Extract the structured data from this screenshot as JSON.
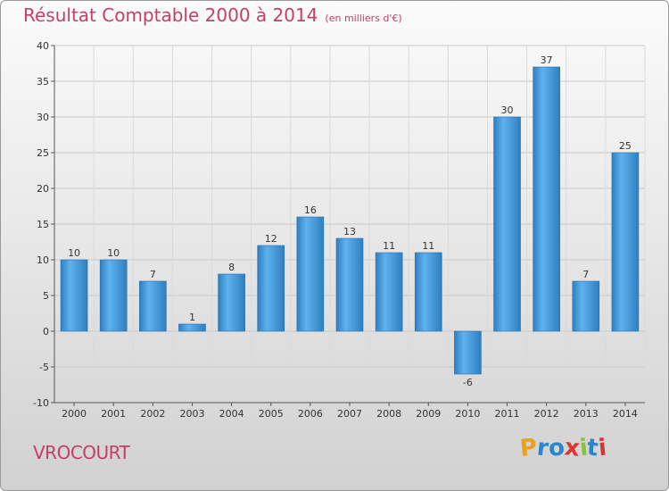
{
  "chart_data": {
    "type": "bar",
    "title": "Résultat Comptable 2000 à 2014",
    "subtitle": "(en milliers d'€)",
    "categories": [
      "2000",
      "2001",
      "2002",
      "2003",
      "2004",
      "2005",
      "2006",
      "2007",
      "2008",
      "2009",
      "2010",
      "2011",
      "2012",
      "2013",
      "2014"
    ],
    "values": [
      10,
      10,
      7,
      1,
      8,
      12,
      16,
      13,
      11,
      11,
      -6,
      30,
      37,
      7,
      25
    ],
    "data_labels": [
      "10",
      "10",
      "7",
      "1",
      "8",
      "12",
      "16",
      "13",
      "11",
      "11",
      "-6",
      "30",
      "37",
      "7",
      "25"
    ],
    "ylim": [
      -10,
      40
    ],
    "yticks": [
      -10,
      -5,
      0,
      5,
      10,
      15,
      20,
      25,
      30,
      35,
      40
    ],
    "ytick_labels": [
      "-10",
      "-5",
      "0",
      "5",
      "10",
      "15",
      "20",
      "25",
      "30",
      "35",
      "40"
    ],
    "grid": true,
    "xlabel": "",
    "ylabel": "",
    "colors": {
      "bar": "#3d8fd0",
      "bar_light": "#5eb2ee",
      "title": "#c43f66"
    }
  },
  "commune": "VROCOURT",
  "logo": {
    "letters": [
      "P",
      "r",
      "o",
      "x",
      "i",
      "t",
      "i"
    ],
    "colors": [
      "#e8a21c",
      "#2a86c8",
      "#2a86c8",
      "#d5382f",
      "#8cc13f",
      "#2a86c8",
      "#d5382f"
    ]
  }
}
